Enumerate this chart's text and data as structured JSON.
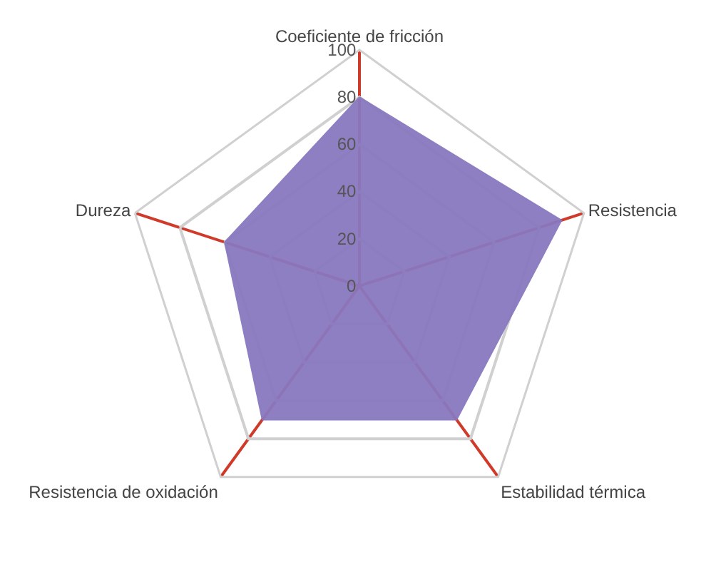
{
  "chart_data": {
    "type": "radar",
    "categories": [
      "Coeficiente de fricción",
      "Resistencia",
      "Estabilidad térmica",
      "Resistencia de oxidación",
      "Dureza"
    ],
    "series": [
      {
        "color": "#8878bf",
        "values": [
          80,
          90,
          70,
          70,
          60
        ]
      }
    ],
    "ylim": [
      0,
      100
    ],
    "yticks": [
      0,
      20,
      40,
      60,
      80,
      100
    ],
    "grid": true
  }
}
